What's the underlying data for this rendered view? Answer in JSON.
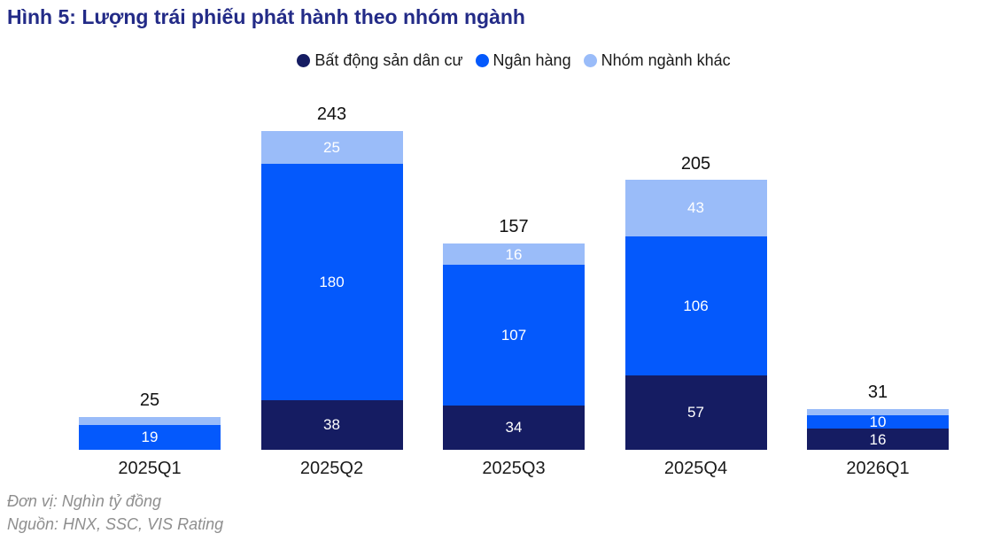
{
  "page": {
    "title": "Hình 5: Lượng trái phiếu phát hành theo nhóm ngành"
  },
  "colors": {
    "navy": "#151C62",
    "blue": "#0459FC",
    "light_blue": "#9ABCF9",
    "title_text": "#232B87",
    "footer_text": "#8e8e8e",
    "segment_label_text": "#ffffff"
  },
  "chart_data": {
    "type": "bar",
    "stacked": true,
    "title": "Hình 5: Lượng trái phiếu phát hành theo nhóm ngành",
    "unit_note": "Đơn vị: Nghìn tỷ đồng",
    "source_note": "Nguồn: HNX, SSC, VIS Rating",
    "legend_position": "top",
    "grid": false,
    "ylim": [
      0,
      250
    ],
    "categories": [
      "2025Q1",
      "2025Q2",
      "2025Q3",
      "2025Q4",
      "2026Q1"
    ],
    "series": [
      {
        "name": "Bất động sản dân cư",
        "color_key": "navy",
        "values": [
          0,
          38,
          34,
          57,
          16
        ],
        "labels": [
          "",
          "38",
          "34",
          "57",
          "16"
        ]
      },
      {
        "name": "Ngân hàng",
        "color_key": "blue",
        "values": [
          19,
          180,
          107,
          106,
          10
        ],
        "labels": [
          "19",
          "180",
          "107",
          "106",
          "10"
        ]
      },
      {
        "name": "Nhóm ngành khác",
        "color_key": "light_blue",
        "values": [
          6,
          25,
          16,
          43,
          5
        ],
        "labels": [
          "",
          "25",
          "16",
          "43",
          ""
        ]
      }
    ],
    "totals": [
      25,
      243,
      157,
      205,
      31
    ]
  }
}
